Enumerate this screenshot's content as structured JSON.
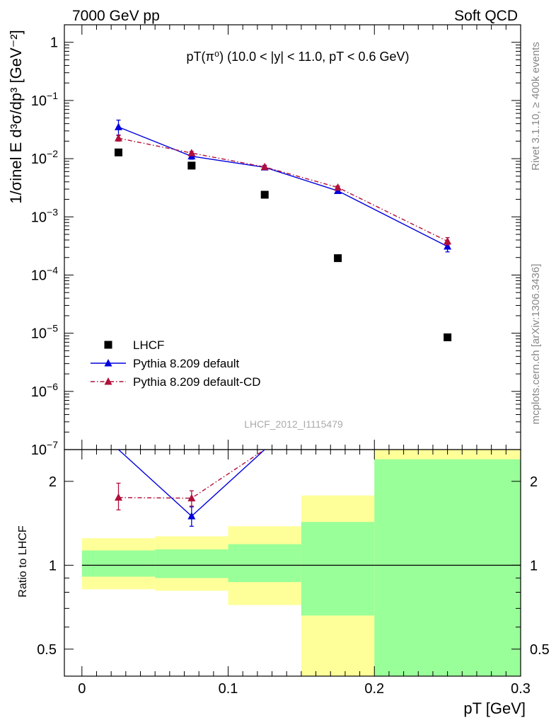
{
  "header": {
    "left": "7000 GeV pp",
    "right": "Soft QCD"
  },
  "side_text": {
    "rivet": "Rivet 3.1.10, ≥ 400k events",
    "mcplots": "mcplots.cern.ch [arXiv:1306.3436]"
  },
  "watermark": "LHCF_2012_I1115479",
  "chart_data": [
    {
      "type": "scatter",
      "panel": "main",
      "title": "pT(π⁰) (10.0 < |y| < 11.0, pT < 0.6 GeV)",
      "xlabel": "pT [GeV]",
      "ylabel": "1/σinel E d³σ/dp³ [GeV⁻²]",
      "yscale": "log",
      "xlim": [
        -0.012,
        0.3
      ],
      "ylim": [
        1e-07,
        2
      ],
      "x_ticks": [
        0,
        0.1,
        0.2,
        0.3
      ],
      "y_ticks": [
        1e-07,
        1e-06,
        1e-05,
        0.0001,
        0.001,
        0.01,
        0.1,
        1
      ],
      "y_tick_labels": [
        "10-7",
        "10-6",
        "10-5",
        "10-4",
        "10-3",
        "10-2",
        "10-1",
        "1"
      ],
      "legend_position": "bottom-left",
      "series": [
        {
          "name": "LHCF",
          "color": "#000000",
          "marker": "square",
          "x": [
            0.025,
            0.075,
            0.125,
            0.175,
            0.25
          ],
          "y": [
            0.0128,
            0.0076,
            0.0024,
            0.000195,
            8.5e-06
          ]
        },
        {
          "name": "Pythia 8.209 default",
          "color": "#0000dd",
          "marker": "triangle",
          "line": "solid",
          "x": [
            0.025,
            0.075,
            0.125,
            0.175,
            0.25
          ],
          "y": [
            0.035,
            0.011,
            0.0071,
            0.0028,
            0.00031
          ],
          "err_low": [
            0.0255,
            0.0098,
            0.0066,
            0.0026,
            0.00025
          ],
          "err_high": [
            0.046,
            0.0124,
            0.0077,
            0.003,
            0.00037
          ]
        },
        {
          "name": "Pythia 8.209 default-CD",
          "color": "#b0103a",
          "marker": "triangle",
          "line": "dashdot",
          "x": [
            0.025,
            0.075,
            0.125,
            0.175,
            0.25
          ],
          "y": [
            0.0225,
            0.0125,
            0.0072,
            0.0032,
            0.00038
          ],
          "err_low": [
            0.02,
            0.0117,
            0.0068,
            0.003,
            0.00033
          ],
          "err_high": [
            0.025,
            0.0133,
            0.0076,
            0.0034,
            0.00044
          ]
        }
      ]
    },
    {
      "type": "line",
      "panel": "ratio",
      "ylabel": "Ratio to LHCF",
      "xlabel": "pT [GeV]",
      "yscale": "log",
      "xlim": [
        -0.012,
        0.3
      ],
      "ylim": [
        0.4,
        2.6
      ],
      "y_ticks": [
        0.5,
        1,
        2
      ],
      "y_tick_labels": [
        "0.5",
        "1",
        "2"
      ],
      "x_ticks": [
        0,
        0.1,
        0.2,
        0.3
      ],
      "x_tick_labels": [
        "0",
        "0.1",
        "0.2",
        "0.3"
      ],
      "reference_line": 1,
      "bands": [
        {
          "x_low": 0.0,
          "x_high": 0.05,
          "yellow": [
            0.82,
            1.25
          ],
          "green": [
            0.91,
            1.13
          ]
        },
        {
          "x_low": 0.05,
          "x_high": 0.1,
          "yellow": [
            0.81,
            1.27
          ],
          "green": [
            0.9,
            1.14
          ]
        },
        {
          "x_low": 0.1,
          "x_high": 0.15,
          "yellow": [
            0.72,
            1.38
          ],
          "green": [
            0.87,
            1.19
          ]
        },
        {
          "x_low": 0.15,
          "x_high": 0.2,
          "yellow": [
            0.4,
            1.78
          ],
          "green": [
            0.66,
            1.43
          ]
        },
        {
          "x_low": 0.2,
          "x_high": 0.3,
          "yellow": [
            0.4,
            2.6
          ],
          "green": [
            0.4,
            2.4
          ]
        }
      ],
      "series": [
        {
          "name": "Pythia 8.209 default",
          "color": "#0000dd",
          "x": [
            0.025,
            0.075,
            0.125
          ],
          "y": [
            2.75,
            1.5,
            2.95
          ],
          "err_low": [
            null,
            1.38,
            null
          ],
          "err_high": [
            null,
            1.62,
            null
          ]
        },
        {
          "name": "Pythia 8.209 default-CD",
          "color": "#b0103a",
          "x": [
            0.025,
            0.075,
            0.125
          ],
          "y": [
            1.75,
            1.74,
            3.0
          ],
          "err_low": [
            1.58,
            1.63,
            null
          ],
          "err_high": [
            1.97,
            1.85,
            null
          ]
        }
      ]
    }
  ]
}
